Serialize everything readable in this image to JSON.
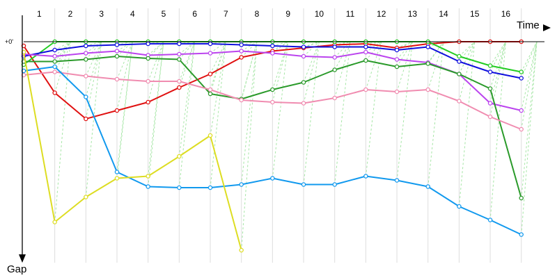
{
  "chart_data": {
    "type": "line",
    "xlabel": "Time",
    "ylabel": "Gap",
    "y_tick_label": "+0'",
    "categories": [
      "1",
      "2",
      "3",
      "4",
      "5",
      "6",
      "7",
      "8",
      "9",
      "10",
      "11",
      "12",
      "13",
      "14",
      "15",
      "16"
    ],
    "xlim": [
      0.5,
      17.2
    ],
    "ylim": [
      0,
      100
    ],
    "grid": true,
    "legend": "none",
    "series": [
      {
        "color": "#e01010",
        "x": [
          0.5,
          1.5,
          2.5,
          3.5,
          4.5,
          5.5,
          6.5,
          7.5,
          8.5,
          9.5,
          10.5,
          11.5,
          12.5,
          13.5,
          14.5,
          15.5,
          16.5
        ],
        "y": [
          2,
          24.5,
          37,
          33,
          29,
          22,
          15.5,
          7.5,
          4.5,
          3,
          1.5,
          1,
          3,
          1,
          0,
          0,
          0
        ]
      },
      {
        "color": "#22cc22",
        "x": [
          0.5,
          1.5,
          2.5,
          3.5,
          4.5,
          5.5,
          6.5,
          7.5,
          8.5,
          9.5,
          10.5,
          11.5,
          12.5,
          13.5,
          14.5,
          15.5,
          16.5
        ],
        "y": [
          11,
          0,
          0,
          0,
          0,
          0,
          0,
          0,
          0,
          0,
          0,
          0,
          0,
          0,
          7,
          11.5,
          14.5
        ]
      },
      {
        "color": "#1010dd",
        "x": [
          0.5,
          1.5,
          2.5,
          3.5,
          4.5,
          5.5,
          6.5,
          7.5,
          8.5,
          9.5,
          10.5,
          11.5,
          12.5,
          13.5,
          14.5,
          15.5,
          16.5
        ],
        "y": [
          7,
          4,
          2,
          1.5,
          1,
          1,
          1,
          1.5,
          2,
          2.5,
          2.5,
          2.5,
          4,
          2.5,
          9.5,
          14.5,
          17.5
        ]
      },
      {
        "color": "#bb44ee",
        "x": [
          0.5,
          1.5,
          2.5,
          3.5,
          4.5,
          5.5,
          6.5,
          7.5,
          8.5,
          9.5,
          10.5,
          11.5,
          12.5,
          13.5,
          14.5,
          15.5,
          16.5
        ],
        "y": [
          6,
          7,
          5.5,
          4.5,
          6.5,
          6,
          5.5,
          4.5,
          5.5,
          7,
          7.5,
          5,
          8.5,
          10,
          15.5,
          29.5,
          33
        ]
      },
      {
        "color": "#2a9a2a",
        "x": [
          0.5,
          1.5,
          2.5,
          3.5,
          4.5,
          5.5,
          6.5,
          7.5,
          8.5,
          9.5,
          10.5,
          11.5,
          12.5,
          13.5,
          14.5,
          15.5,
          16.5
        ],
        "y": [
          9.5,
          9.5,
          8.5,
          7,
          8,
          8.5,
          25,
          27.5,
          23,
          19.5,
          13.5,
          9,
          12,
          10.5,
          15.5,
          22.5,
          75
        ]
      },
      {
        "color": "#f08cb0",
        "x": [
          0.5,
          1.5,
          2.5,
          3.5,
          4.5,
          5.5,
          6.5,
          7.5,
          8.5,
          9.5,
          10.5,
          11.5,
          12.5,
          13.5,
          14.5,
          15.5,
          16.5
        ],
        "y": [
          16,
          14.5,
          16.5,
          18,
          19,
          19,
          23,
          28,
          29,
          29.5,
          27,
          23,
          24,
          23,
          28.5,
          36,
          42
        ]
      },
      {
        "color": "#1199ee",
        "x": [
          0.5,
          1.5,
          2.5,
          3.5,
          4.5,
          5.5,
          6.5,
          7.5,
          8.5,
          9.5,
          10.5,
          11.5,
          12.5,
          13.5,
          14.5,
          15.5,
          16.5
        ],
        "y": [
          14,
          12,
          26.5,
          62.5,
          69.5,
          70,
          70,
          68.5,
          65.5,
          68.5,
          68.5,
          64.5,
          66.5,
          69.5,
          79,
          85.5,
          92.5
        ]
      },
      {
        "color": "#dddd22",
        "x": [
          0.5,
          1.5,
          2.5,
          3.5,
          4.5,
          5.5,
          6.5,
          7.5
        ],
        "y": [
          5,
          86.5,
          74.5,
          65.5,
          64.5,
          55,
          45,
          100
        ]
      }
    ]
  }
}
